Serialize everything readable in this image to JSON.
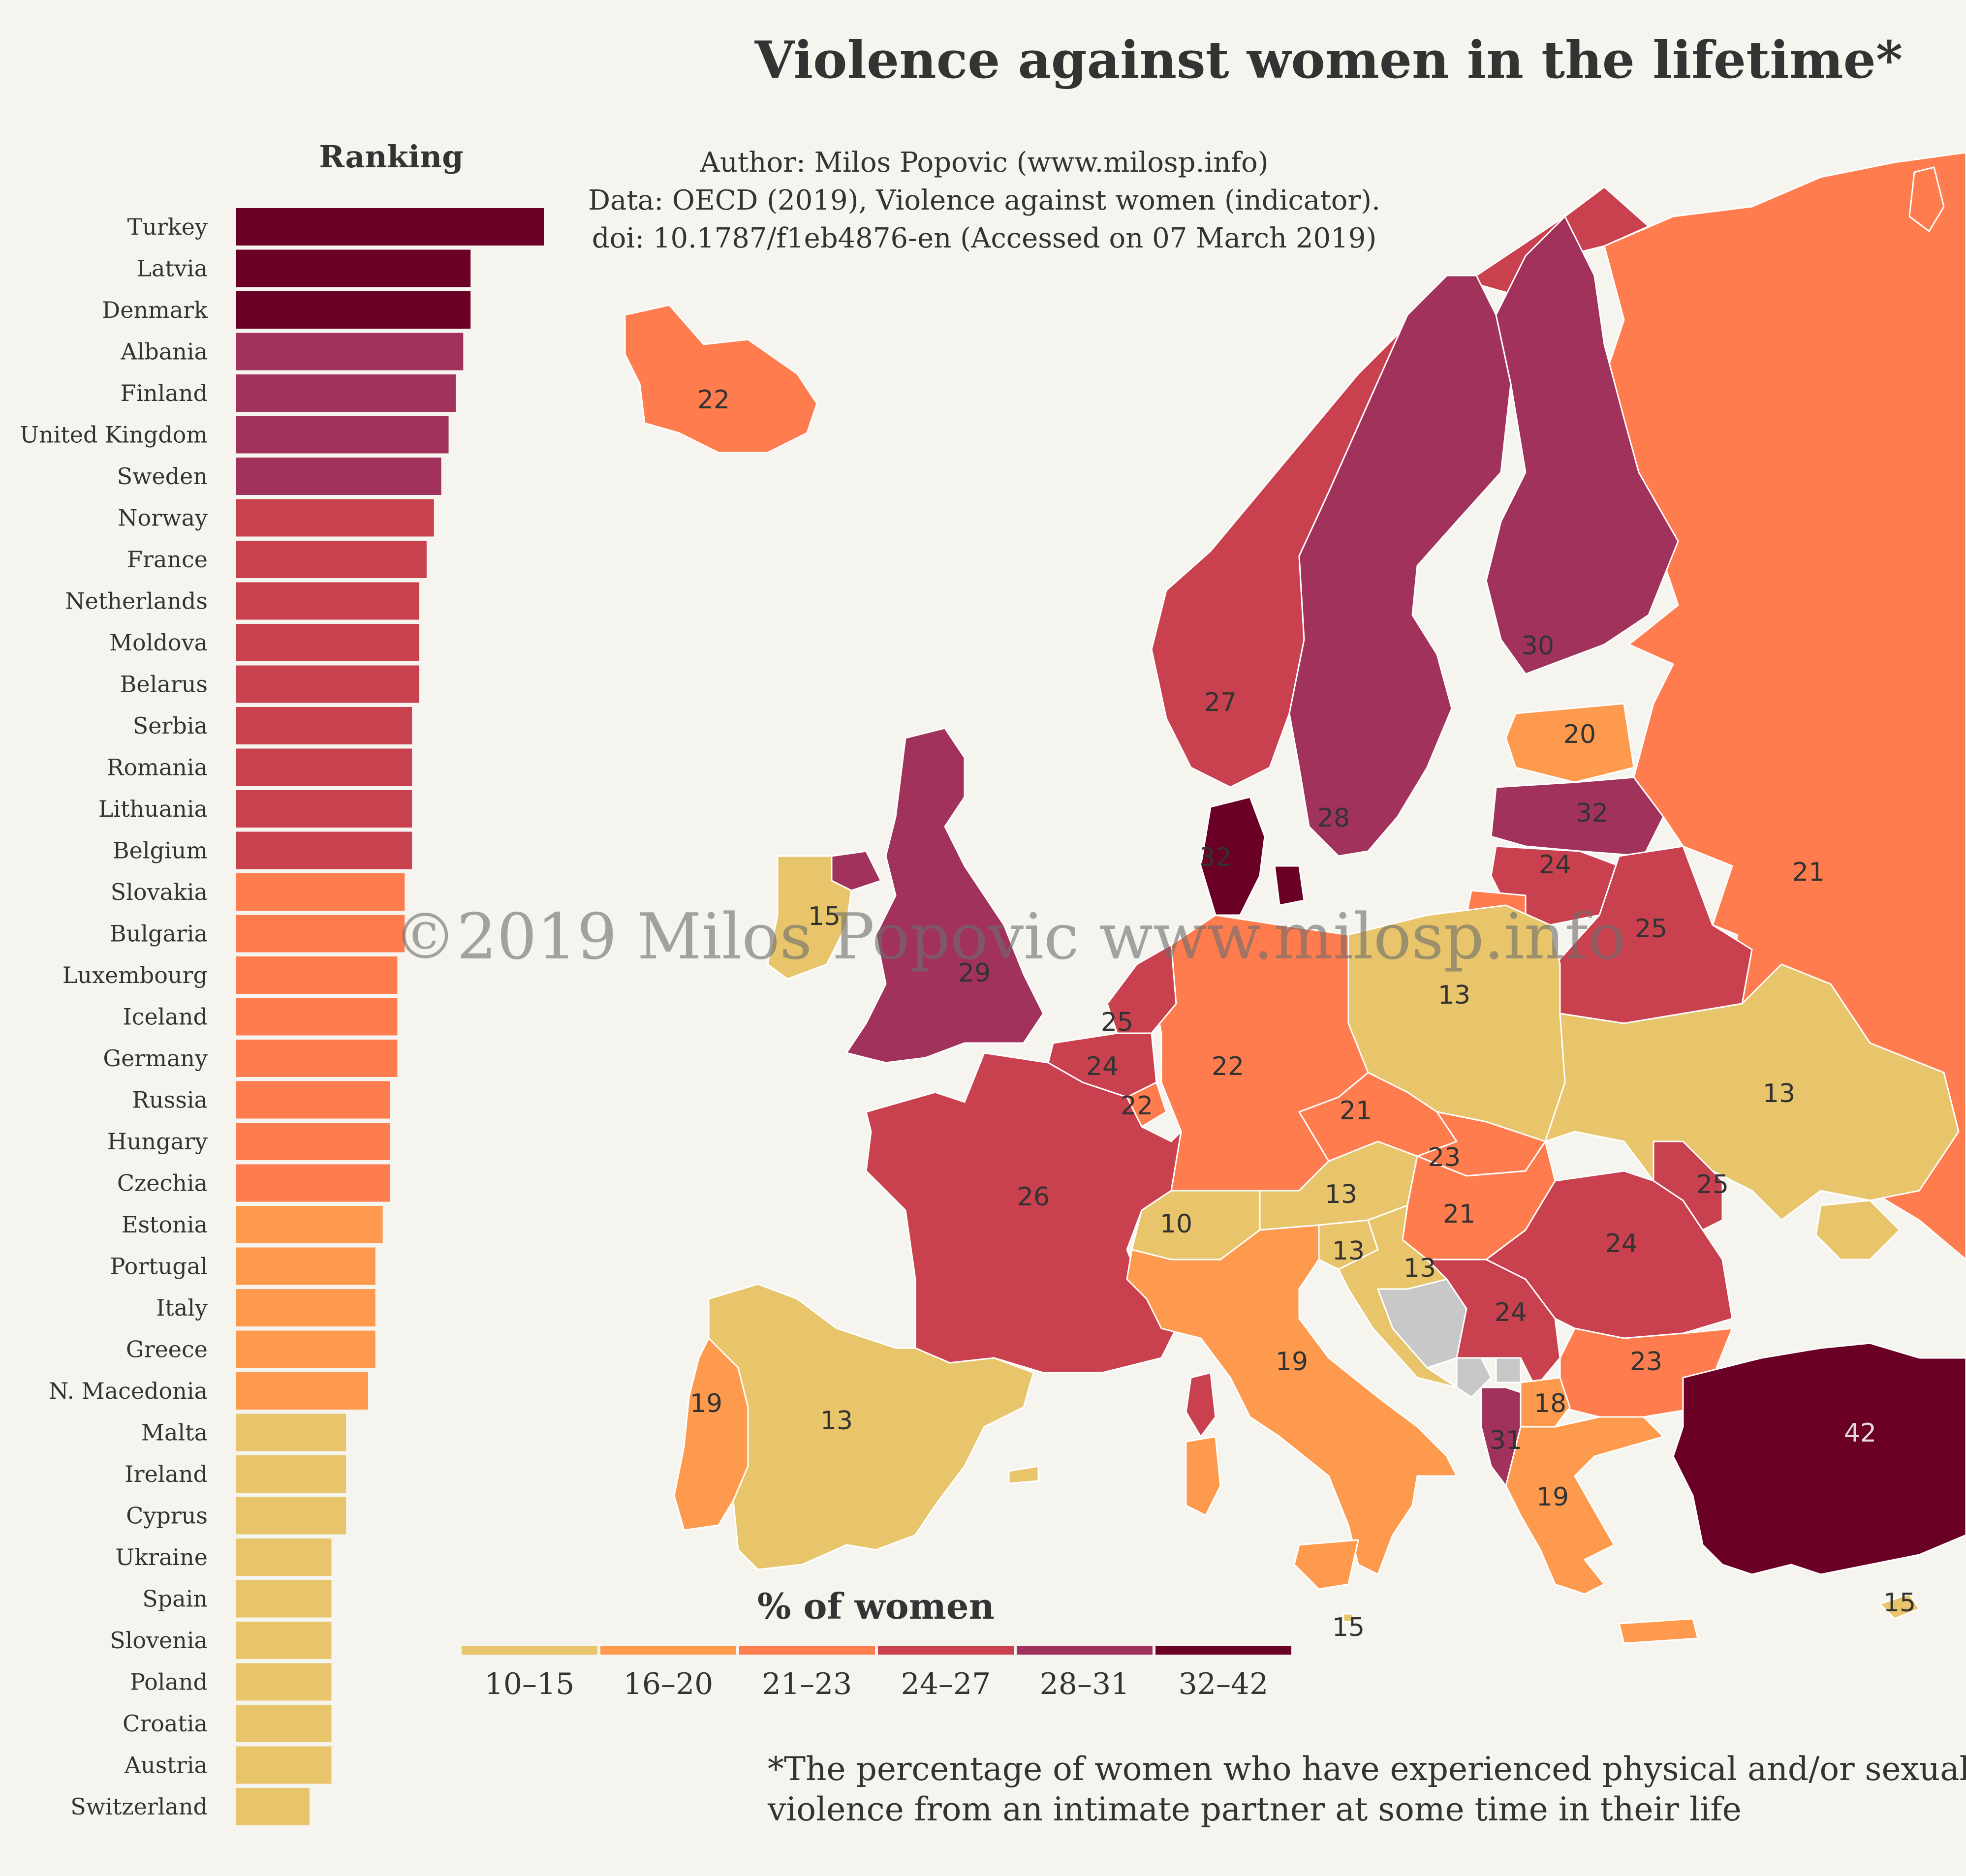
{
  "title": "Violence against women in the lifetime*",
  "credits": {
    "line1": "Author: Milos Popovic (www.milosp.info)",
    "line2": "Data:  OECD (2019), Violence against women (indicator).",
    "line3": "doi: 10.1787/f1eb4876-en (Accessed on 07 March 2019)"
  },
  "watermark": "©2019 Milos Popovic www.milosp.info",
  "footnote": {
    "line1": "*The percentage of women who have experienced physical and/or sexual",
    "line2": "violence from an intimate partner at some time in their life"
  },
  "chart_data": {
    "type": "bar",
    "orientation": "horizontal",
    "title": "Ranking",
    "categories": [
      "Turkey",
      "Latvia",
      "Denmark",
      "Albania",
      "Finland",
      "United Kingdom",
      "Sweden",
      "Norway",
      "France",
      "Netherlands",
      "Moldova",
      "Belarus",
      "Serbia",
      "Romania",
      "Lithuania",
      "Belgium",
      "Slovakia",
      "Bulgaria",
      "Luxembourg",
      "Iceland",
      "Germany",
      "Russia",
      "Hungary",
      "Czechia",
      "Estonia",
      "Portugal",
      "Italy",
      "Greece",
      "N. Macedonia",
      "Malta",
      "Ireland",
      "Cyprus",
      "Ukraine",
      "Spain",
      "Slovenia",
      "Poland",
      "Croatia",
      "Austria",
      "Switzerland"
    ],
    "values": [
      42,
      32,
      32,
      31,
      30,
      29,
      28,
      27,
      26,
      25,
      25,
      25,
      24,
      24,
      24,
      24,
      23,
      23,
      22,
      22,
      22,
      21,
      21,
      21,
      20,
      19,
      19,
      19,
      18,
      15,
      15,
      15,
      13,
      13,
      13,
      13,
      13,
      13,
      10
    ],
    "xlim": [
      0,
      42
    ],
    "grid": false,
    "legend": {
      "title": "% of women",
      "bins": [
        {
          "label": "10–15",
          "color": "#e8c46a"
        },
        {
          "label": "16–20",
          "color": "#fe9a4e"
        },
        {
          "label": "21–23",
          "color": "#fe7c4d"
        },
        {
          "label": "24–27",
          "color": "#c9414f"
        },
        {
          "label": "28–31",
          "color": "#a0325c"
        },
        {
          "label": "32–42",
          "color": "#6a0026"
        }
      ]
    }
  },
  "map_labels": [
    {
      "country": "Iceland",
      "value": "22"
    },
    {
      "country": "Norway",
      "value": "27"
    },
    {
      "country": "Sweden",
      "value": "28"
    },
    {
      "country": "Finland",
      "value": "30"
    },
    {
      "country": "Estonia",
      "value": "20"
    },
    {
      "country": "Latvia",
      "value": "32"
    },
    {
      "country": "Lithuania",
      "value": "24"
    },
    {
      "country": "Belarus",
      "value": "25"
    },
    {
      "country": "Russia",
      "value": "21"
    },
    {
      "country": "Denmark",
      "value": "32"
    },
    {
      "country": "Ireland",
      "value": "15"
    },
    {
      "country": "United Kingdom",
      "value": "29"
    },
    {
      "country": "Netherlands",
      "value": "25"
    },
    {
      "country": "Belgium",
      "value": "24"
    },
    {
      "country": "Luxembourg",
      "value": "22"
    },
    {
      "country": "Germany",
      "value": "22"
    },
    {
      "country": "Poland",
      "value": "13"
    },
    {
      "country": "Ukraine",
      "value": "13"
    },
    {
      "country": "France",
      "value": "26"
    },
    {
      "country": "Czechia",
      "value": "21"
    },
    {
      "country": "Slovakia",
      "value": "23"
    },
    {
      "country": "Austria",
      "value": "13"
    },
    {
      "country": "Switzerland",
      "value": "10"
    },
    {
      "country": "Hungary",
      "value": "21"
    },
    {
      "country": "Moldova",
      "value": "25"
    },
    {
      "country": "Romania",
      "value": "24"
    },
    {
      "country": "Slovenia",
      "value": "13"
    },
    {
      "country": "Croatia",
      "value": "13"
    },
    {
      "country": "Serbia",
      "value": "24"
    },
    {
      "country": "Bulgaria",
      "value": "23"
    },
    {
      "country": "Italy",
      "value": "19"
    },
    {
      "country": "Albania",
      "value": "31"
    },
    {
      "country": "N. Macedonia",
      "value": "18"
    },
    {
      "country": "Greece",
      "value": "19"
    },
    {
      "country": "Turkey",
      "value": "42"
    },
    {
      "country": "Spain",
      "value": "13"
    },
    {
      "country": "Portugal",
      "value": "19"
    },
    {
      "country": "Malta",
      "value": "15"
    },
    {
      "country": "Cyprus",
      "value": "15"
    }
  ],
  "colors": {
    "background": "#f5f4ef",
    "no_data": "#c8c8c8",
    "text": "#333333"
  }
}
